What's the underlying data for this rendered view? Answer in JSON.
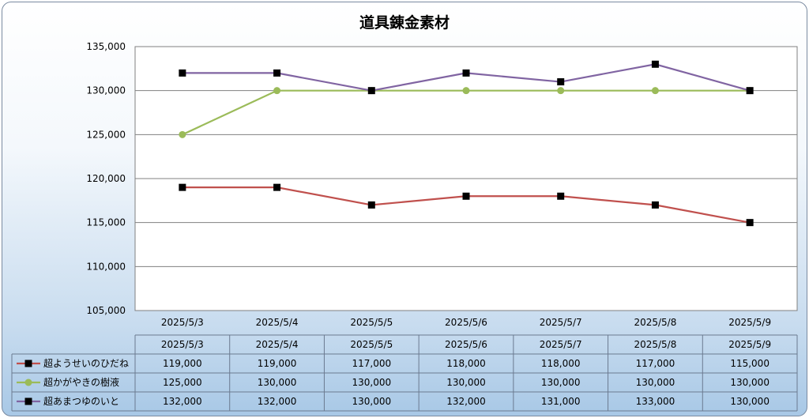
{
  "chart_data": {
    "type": "line",
    "title": "道具錬金素材",
    "categories": [
      "2025/5/3",
      "2025/5/4",
      "2025/5/5",
      "2025/5/6",
      "2025/5/7",
      "2025/5/8",
      "2025/5/9"
    ],
    "ylim": [
      105000,
      135000
    ],
    "yticks": [
      105000,
      110000,
      115000,
      120000,
      125000,
      130000,
      135000
    ],
    "ytick_labels": [
      "105,000",
      "110,000",
      "115,000",
      "120,000",
      "125,000",
      "130,000",
      "135,000"
    ],
    "grid": true,
    "legend": "data-table",
    "series": [
      {
        "name": "超ようせいのひだね",
        "color": "#c0504d",
        "marker": "square",
        "values": [
          119000,
          119000,
          117000,
          118000,
          118000,
          117000,
          115000
        ],
        "labels": [
          "119,000",
          "119,000",
          "117,000",
          "118,000",
          "118,000",
          "117,000",
          "115,000"
        ]
      },
      {
        "name": "超かがやきの樹液",
        "color": "#9bbb59",
        "marker": "circle",
        "values": [
          125000,
          130000,
          130000,
          130000,
          130000,
          130000,
          130000
        ],
        "labels": [
          "125,000",
          "130,000",
          "130,000",
          "130,000",
          "130,000",
          "130,000",
          "130,000"
        ]
      },
      {
        "name": "超あまつゆのいと",
        "color": "#8064a2",
        "marker": "square",
        "values": [
          132000,
          132000,
          130000,
          132000,
          131000,
          133000,
          130000
        ],
        "labels": [
          "132,000",
          "132,000",
          "130,000",
          "132,000",
          "131,000",
          "133,000",
          "130,000"
        ]
      }
    ]
  }
}
